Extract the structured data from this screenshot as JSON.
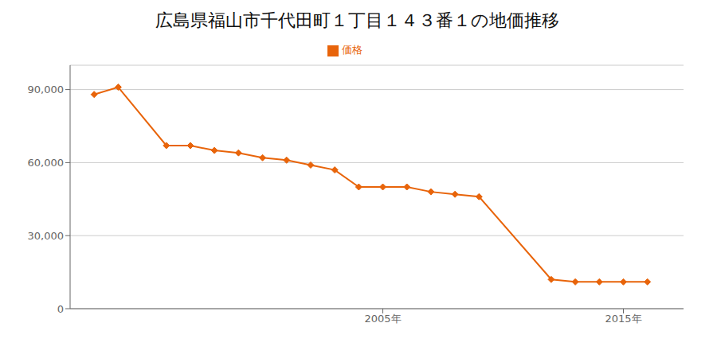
{
  "chart_data": {
    "type": "line",
    "title": "広島県福山市千代田町１丁目１４３番１の地価推移",
    "x": [
      1993,
      1994,
      1996,
      1997,
      1998,
      1999,
      2000,
      2001,
      2002,
      2003,
      2004,
      2005,
      2006,
      2007,
      2008,
      2009,
      2012,
      2013,
      2014,
      2015,
      2016
    ],
    "series": [
      {
        "name": "価格",
        "color": "#e8640a",
        "values": [
          88000,
          91000,
          67000,
          67000,
          65000,
          64000,
          62000,
          61000,
          59000,
          57000,
          50000,
          50000,
          50000,
          48000,
          47000,
          46000,
          12000,
          11000,
          11000,
          11000,
          11000
        ]
      }
    ],
    "xlim": [
      1992,
      2017.5
    ],
    "xticks": [
      {
        "value": 2005,
        "label": "2005年"
      },
      {
        "value": 2015,
        "label": "2015年"
      }
    ],
    "ylim": [
      0,
      100000
    ],
    "yticks": [
      0,
      {
        "value": 30000,
        "label": "30,000"
      },
      {
        "value": 60000,
        "label": "60,000"
      },
      {
        "value": 90000,
        "label": "90,000"
      }
    ],
    "grid": "y",
    "legend": "top",
    "marker": "diamond"
  }
}
